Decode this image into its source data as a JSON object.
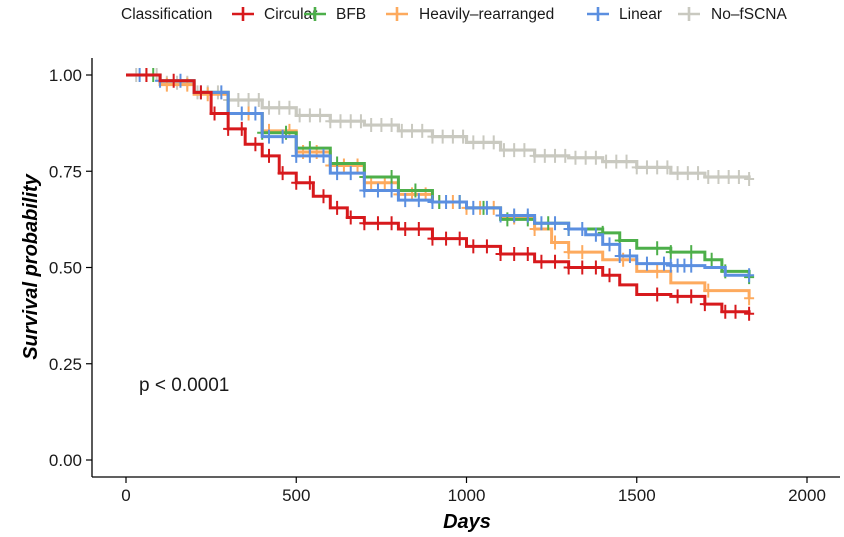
{
  "chart_data": {
    "type": "line",
    "subtype": "kaplan-meier",
    "title": "",
    "xlabel": "Days",
    "ylabel": "Survival probability",
    "xlim": [
      0,
      2000
    ],
    "ylim": [
      0,
      1
    ],
    "x_ticks": [
      0,
      500,
      1000,
      1500,
      2000
    ],
    "x_tick_labels": [
      "0",
      "500",
      "1000",
      "1500",
      "2000"
    ],
    "y_ticks": [
      0,
      0.25,
      0.5,
      0.75,
      1.0
    ],
    "y_tick_labels": [
      "0.00",
      "0.25",
      "0.50",
      "0.75",
      "1.00"
    ],
    "grid": false,
    "legend": {
      "title": "Classification",
      "placement": "top",
      "entries": [
        "Circular",
        "BFB",
        "Heavily–rearranged",
        "Linear",
        "No–fSCNA"
      ]
    },
    "annotations": [
      {
        "text": "p < 0.0001",
        "x": 40,
        "y": 0.2
      }
    ],
    "series": [
      {
        "name": "No–fSCNA",
        "color": "#c9c9c0",
        "x": [
          0,
          100,
          200,
          300,
          400,
          500,
          600,
          700,
          800,
          900,
          1000,
          1100,
          1200,
          1300,
          1400,
          1500,
          1600,
          1700,
          1830
        ],
        "y": [
          1.0,
          0.98,
          0.955,
          0.935,
          0.915,
          0.895,
          0.88,
          0.87,
          0.855,
          0.84,
          0.825,
          0.805,
          0.79,
          0.785,
          0.775,
          0.76,
          0.745,
          0.735,
          0.73
        ],
        "censor_x": [
          30,
          60,
          90,
          120,
          150,
          180,
          210,
          240,
          270,
          300,
          330,
          360,
          390,
          420,
          450,
          480,
          510,
          540,
          570,
          600,
          630,
          660,
          690,
          720,
          750,
          780,
          810,
          840,
          870,
          900,
          930,
          960,
          990,
          1020,
          1050,
          1080,
          1110,
          1140,
          1170,
          1200,
          1230,
          1260,
          1290,
          1320,
          1350,
          1380,
          1410,
          1440,
          1470,
          1500,
          1530,
          1560,
          1590,
          1620,
          1650,
          1680,
          1710,
          1740,
          1770,
          1800,
          1830
        ]
      },
      {
        "name": "Heavily–rearranged",
        "color": "#fdaa5e",
        "x": [
          0,
          100,
          200,
          300,
          400,
          500,
          600,
          700,
          800,
          900,
          1000,
          1100,
          1200,
          1250,
          1300,
          1400,
          1500,
          1600,
          1700,
          1830
        ],
        "y": [
          1.0,
          0.975,
          0.95,
          0.9,
          0.855,
          0.8,
          0.765,
          0.72,
          0.69,
          0.67,
          0.655,
          0.63,
          0.6,
          0.565,
          0.54,
          0.52,
          0.49,
          0.46,
          0.44,
          0.42
        ],
        "censor_x": [
          60,
          120,
          180,
          240,
          300,
          360,
          420,
          480,
          520,
          560,
          600,
          640,
          680,
          720,
          760,
          800,
          840,
          880,
          920,
          960,
          1000,
          1040,
          1080,
          1140,
          1200,
          1260,
          1300,
          1340,
          1460,
          1560,
          1710,
          1830
        ]
      },
      {
        "name": "BFB",
        "color": "#4daf4a",
        "x": [
          0,
          100,
          200,
          300,
          400,
          500,
          600,
          700,
          800,
          900,
          1000,
          1100,
          1200,
          1300,
          1400,
          1450,
          1500,
          1600,
          1700,
          1750,
          1830
        ],
        "y": [
          1.0,
          0.985,
          0.955,
          0.9,
          0.85,
          0.81,
          0.77,
          0.735,
          0.7,
          0.67,
          0.655,
          0.625,
          0.615,
          0.6,
          0.59,
          0.57,
          0.55,
          0.54,
          0.52,
          0.49,
          0.475
        ],
        "censor_x": [
          80,
          300,
          400,
          470,
          540,
          620,
          700,
          780,
          850,
          920,
          980,
          1050,
          1120,
          1180,
          1240,
          1300,
          1400,
          1450,
          1560,
          1600,
          1660,
          1720,
          1760,
          1830
        ]
      },
      {
        "name": "Linear",
        "color": "#5b8fe0",
        "x": [
          0,
          100,
          200,
          300,
          400,
          500,
          600,
          700,
          800,
          900,
          1000,
          1100,
          1200,
          1300,
          1350,
          1400,
          1450,
          1500,
          1600,
          1700,
          1760,
          1830
        ],
        "y": [
          1.0,
          0.985,
          0.955,
          0.9,
          0.84,
          0.79,
          0.745,
          0.7,
          0.675,
          0.67,
          0.655,
          0.635,
          0.615,
          0.6,
          0.585,
          0.56,
          0.53,
          0.51,
          0.505,
          0.5,
          0.48,
          0.48
        ],
        "censor_x": [
          40,
          100,
          160,
          220,
          280,
          340,
          380,
          420,
          460,
          500,
          540,
          580,
          620,
          660,
          700,
          740,
          780,
          820,
          860,
          900,
          940,
          980,
          1020,
          1060,
          1100,
          1140,
          1180,
          1220,
          1260,
          1300,
          1340,
          1380,
          1420,
          1450,
          1480,
          1530,
          1580,
          1600,
          1620,
          1640,
          1660,
          1830
        ]
      },
      {
        "name": "Circular",
        "color": "#d7191c",
        "x": [
          0,
          100,
          200,
          250,
          300,
          350,
          400,
          450,
          500,
          550,
          600,
          650,
          700,
          800,
          900,
          1000,
          1100,
          1200,
          1300,
          1400,
          1450,
          1500,
          1600,
          1700,
          1750,
          1830
        ],
        "y": [
          1.0,
          0.985,
          0.955,
          0.9,
          0.86,
          0.82,
          0.79,
          0.745,
          0.72,
          0.685,
          0.655,
          0.63,
          0.615,
          0.6,
          0.575,
          0.555,
          0.535,
          0.515,
          0.5,
          0.48,
          0.455,
          0.43,
          0.425,
          0.405,
          0.385,
          0.38
        ],
        "censor_x": [
          60,
          140,
          220,
          260,
          300,
          340,
          380,
          420,
          460,
          500,
          540,
          580,
          620,
          660,
          700,
          740,
          780,
          820,
          860,
          900,
          940,
          980,
          1020,
          1060,
          1100,
          1140,
          1180,
          1220,
          1260,
          1300,
          1340,
          1380,
          1420,
          1560,
          1620,
          1660,
          1700,
          1760,
          1790,
          1830
        ]
      }
    ]
  }
}
